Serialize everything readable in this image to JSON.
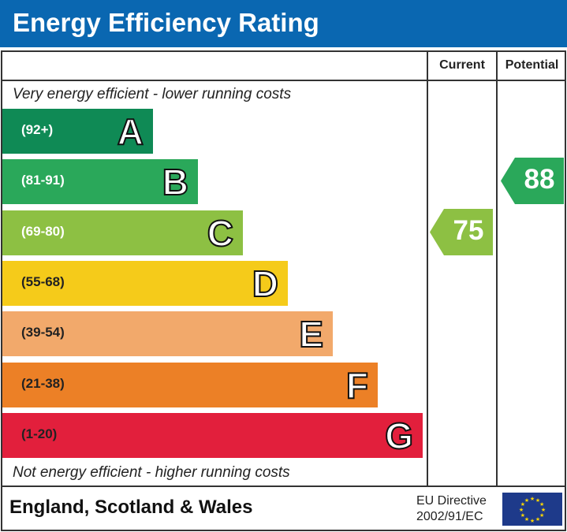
{
  "title": "Energy Efficiency Rating",
  "columns": {
    "current": "Current",
    "potential": "Potential"
  },
  "top_note": "Very energy efficient - lower running costs",
  "bottom_note": "Not energy efficient - higher running costs",
  "chart_data": {
    "type": "bar",
    "bands": [
      {
        "letter": "A",
        "range": "(92+)",
        "color": "#0f8a55",
        "text": "#fff"
      },
      {
        "letter": "B",
        "range": "(81-91)",
        "color": "#2aa85a",
        "text": "#fff"
      },
      {
        "letter": "C",
        "range": "(69-80)",
        "color": "#8dc043",
        "text": "#fff"
      },
      {
        "letter": "D",
        "range": "(55-68)",
        "color": "#f5cb1a",
        "text": "#222"
      },
      {
        "letter": "E",
        "range": "(39-54)",
        "color": "#f2a96b",
        "text": "#222"
      },
      {
        "letter": "F",
        "range": "(21-38)",
        "color": "#ec8026",
        "text": "#222"
      },
      {
        "letter": "G",
        "range": "(1-20)",
        "color": "#e21f3c",
        "text": "#222"
      }
    ],
    "current": {
      "value": "75",
      "band": "C",
      "color": "#8dc043"
    },
    "potential": {
      "value": "88",
      "band": "B",
      "color": "#2aa85a"
    }
  },
  "footer": {
    "region": "England, Scotland & Wales",
    "directive_line1": "EU Directive",
    "directive_line2": "2002/91/EC"
  },
  "colors": {
    "header": "#0a67b1",
    "eu_flag": "#1e3a8a",
    "eu_stars": "#ffd700"
  }
}
